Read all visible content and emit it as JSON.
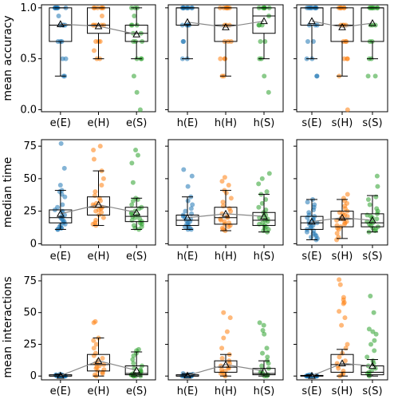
{
  "chart_data": [
    {
      "type": "box+strip",
      "row": 0,
      "col": 0,
      "ylabel": "mean accuracy",
      "ylim": [
        -0.02,
        1.03
      ],
      "yticks": [
        0.0,
        0.5,
        1.0
      ],
      "categories": [
        "e(E)",
        "e(H)",
        "e(S)"
      ],
      "colors": [
        "#1f77b4",
        "#ff7f0e",
        "#2ca02c"
      ],
      "boxes": [
        {
          "min": 0.33,
          "q1": 0.67,
          "median": 0.83,
          "q3": 1.0,
          "max": 1.0,
          "mean": 0.84
        },
        {
          "min": 0.5,
          "q1": 0.75,
          "median": 0.83,
          "q3": 1.0,
          "max": 1.0,
          "mean": 0.82
        },
        {
          "min": 0.5,
          "q1": 0.67,
          "median": 0.75,
          "q3": 0.83,
          "max": 1.0,
          "mean": 0.74
        }
      ],
      "points": [
        [
          1,
          1,
          1,
          1,
          1,
          1,
          1,
          1,
          0.92,
          0.83,
          0.83,
          0.83,
          0.83,
          0.67,
          0.67,
          0.67,
          0.5,
          0.5,
          0.33,
          0.33
        ],
        [
          1,
          1,
          1,
          1,
          1,
          1,
          0.92,
          0.83,
          0.83,
          0.83,
          0.83,
          0.83,
          0.67,
          0.67,
          0.67,
          0.58,
          0.5,
          0.5
        ],
        [
          1,
          1,
          1,
          0.92,
          0.83,
          0.83,
          0.83,
          0.75,
          0.75,
          0.67,
          0.67,
          0.67,
          0.5,
          0.5,
          0.5,
          0.33,
          0.17,
          0.0
        ]
      ]
    },
    {
      "type": "box+strip",
      "row": 0,
      "col": 1,
      "ylabel": "",
      "ylim": [
        -0.02,
        1.03
      ],
      "yticks": [
        0.0,
        0.5,
        1.0
      ],
      "categories": [
        "h(E)",
        "h(H)",
        "h(S)"
      ],
      "colors": [
        "#1f77b4",
        "#ff7f0e",
        "#2ca02c"
      ],
      "boxes": [
        {
          "min": 0.5,
          "q1": 0.83,
          "median": 1.0,
          "q3": 1.0,
          "max": 1.0,
          "mean": 0.86
        },
        {
          "min": 0.33,
          "q1": 0.67,
          "median": 0.83,
          "q3": 1.0,
          "max": 1.0,
          "mean": 0.81
        },
        {
          "min": 0.5,
          "q1": 0.75,
          "median": 0.92,
          "q3": 1.0,
          "max": 1.0,
          "mean": 0.87
        }
      ],
      "points": [
        [
          1,
          1,
          1,
          1,
          1,
          1,
          1,
          1,
          1,
          0.83,
          0.83,
          0.83,
          0.83,
          0.67,
          0.67,
          0.5,
          0.5
        ],
        [
          1,
          1,
          1,
          1,
          1,
          1,
          1,
          0.83,
          0.83,
          0.83,
          0.67,
          0.67,
          0.67,
          0.5,
          0.5,
          0.5,
          0.33,
          0.33
        ],
        [
          1,
          1,
          1,
          1,
          1,
          1,
          1,
          0.92,
          0.83,
          0.83,
          0.83,
          0.67,
          0.67,
          0.5,
          0.5,
          0.33,
          0.17
        ]
      ]
    },
    {
      "type": "box+strip",
      "row": 0,
      "col": 2,
      "ylabel": "",
      "ylim": [
        -0.02,
        1.03
      ],
      "yticks": [
        0.0,
        0.5,
        1.0
      ],
      "categories": [
        "s(E)",
        "s(H)",
        "s(S)"
      ],
      "colors": [
        "#1f77b4",
        "#ff7f0e",
        "#2ca02c"
      ],
      "boxes": [
        {
          "min": 0.5,
          "q1": 0.83,
          "median": 1.0,
          "q3": 1.0,
          "max": 1.0,
          "mean": 0.87
        },
        {
          "min": 0.33,
          "q1": 0.67,
          "median": 0.83,
          "q3": 1.0,
          "max": 1.0,
          "mean": 0.81
        },
        {
          "min": 0.5,
          "q1": 0.67,
          "median": 1.0,
          "q3": 1.0,
          "max": 1.0,
          "mean": 0.85
        }
      ],
      "points": [
        [
          1,
          1,
          1,
          1,
          1,
          1,
          1,
          1,
          1,
          0.83,
          0.83,
          0.83,
          0.67,
          0.67,
          0.5,
          0.5,
          0.33,
          0.33
        ],
        [
          1,
          1,
          1,
          1,
          1,
          1,
          0.83,
          0.83,
          0.83,
          0.83,
          0.67,
          0.67,
          0.67,
          0.5,
          0.5,
          0.5,
          0.33,
          0.0
        ],
        [
          1,
          1,
          1,
          1,
          1,
          1,
          1,
          1,
          0.83,
          0.83,
          0.83,
          0.67,
          0.67,
          0.5,
          0.5,
          0.33,
          0.33
        ]
      ]
    },
    {
      "type": "box+strip",
      "row": 1,
      "col": 0,
      "ylabel": "median time",
      "ylim": [
        -1,
        80
      ],
      "yticks": [
        0,
        25,
        50,
        75
      ],
      "categories": [
        "e(E)",
        "e(H)",
        "e(S)"
      ],
      "colors": [
        "#1f77b4",
        "#ff7f0e",
        "#2ca02c"
      ],
      "boxes": [
        {
          "min": 11,
          "q1": 16,
          "median": 20,
          "q3": 26,
          "max": 41,
          "mean": 23
        },
        {
          "min": 14,
          "q1": 22,
          "median": 28,
          "q3": 36,
          "max": 56,
          "mean": 30
        },
        {
          "min": 11,
          "q1": 17,
          "median": 21,
          "q3": 28,
          "max": 35,
          "mean": 24
        }
      ],
      "points": [
        [
          77,
          58,
          45,
          41,
          40,
          38,
          36,
          30,
          28,
          26,
          25,
          24,
          22,
          21,
          20,
          19,
          18,
          17,
          16,
          15,
          14,
          13,
          12,
          12,
          11,
          11
        ],
        [
          75,
          72,
          65,
          56,
          50,
          45,
          40,
          37,
          35,
          33,
          31,
          30,
          29,
          28,
          27,
          26,
          25,
          24,
          22,
          20,
          18,
          16,
          15,
          14
        ],
        [
          72,
          68,
          62,
          47,
          35,
          34,
          33,
          30,
          28,
          27,
          25,
          24,
          23,
          22,
          21,
          20,
          19,
          18,
          17,
          16,
          15,
          14,
          13,
          12,
          11
        ]
      ]
    },
    {
      "type": "box+strip",
      "row": 1,
      "col": 1,
      "ylabel": "",
      "ylim": [
        -1,
        80
      ],
      "yticks": [
        0,
        25,
        50,
        75
      ],
      "categories": [
        "h(E)",
        "h(H)",
        "h(S)"
      ],
      "colors": [
        "#1f77b4",
        "#ff7f0e",
        "#2ca02c"
      ],
      "boxes": [
        {
          "min": 11,
          "q1": 14,
          "median": 18,
          "q3": 22,
          "max": 36,
          "mean": 20
        },
        {
          "min": 10,
          "q1": 15,
          "median": 20,
          "q3": 28,
          "max": 41,
          "mean": 23
        },
        {
          "min": 9,
          "q1": 14,
          "median": 18,
          "q3": 24,
          "max": 38,
          "mean": 21
        }
      ],
      "points": [
        [
          57,
          52,
          44,
          36,
          33,
          30,
          27,
          25,
          23,
          22,
          21,
          20,
          19,
          18,
          17,
          16,
          15,
          14,
          13,
          12,
          11,
          11
        ],
        [
          51,
          48,
          45,
          41,
          39,
          35,
          32,
          29,
          27,
          25,
          23,
          21,
          20,
          19,
          18,
          17,
          16,
          15,
          14,
          13,
          12,
          11,
          10
        ],
        [
          54,
          50,
          46,
          40,
          38,
          34,
          31,
          28,
          26,
          24,
          22,
          21,
          20,
          19,
          18,
          17,
          16,
          15,
          14,
          13,
          12,
          11,
          10,
          9
        ]
      ]
    },
    {
      "type": "box+strip",
      "row": 1,
      "col": 2,
      "ylabel": "",
      "ylim": [
        -1,
        80
      ],
      "yticks": [
        0,
        25,
        50,
        75
      ],
      "categories": [
        "s(E)",
        "s(H)",
        "s(S)"
      ],
      "colors": [
        "#1f77b4",
        "#ff7f0e",
        "#2ca02c"
      ],
      "boxes": [
        {
          "min": 3,
          "q1": 11,
          "median": 16,
          "q3": 21,
          "max": 34,
          "mean": 17
        },
        {
          "min": 4,
          "q1": 13,
          "median": 19,
          "q3": 25,
          "max": 34,
          "mean": 20
        },
        {
          "min": 9,
          "q1": 13,
          "median": 16,
          "q3": 23,
          "max": 37,
          "mean": 18
        }
      ],
      "points": [
        [
          34,
          32,
          30,
          28,
          26,
          24,
          22,
          21,
          20,
          19,
          18,
          17,
          16,
          15,
          14,
          13,
          12,
          11,
          10,
          9,
          8,
          7,
          6,
          5,
          4,
          3
        ],
        [
          38,
          35,
          33,
          31,
          29,
          27,
          25,
          24,
          23,
          22,
          21,
          20,
          19,
          18,
          17,
          16,
          15,
          14,
          13,
          12,
          11,
          8,
          5,
          3
        ],
        [
          52,
          44,
          36,
          34,
          30,
          27,
          25,
          23,
          22,
          21,
          20,
          19,
          18,
          17,
          16,
          15,
          14,
          13,
          12,
          11,
          10,
          9
        ]
      ]
    },
    {
      "type": "box+strip",
      "row": 2,
      "col": 0,
      "ylabel": "mean interactions",
      "ylim": [
        -3,
        80
      ],
      "yticks": [
        0,
        25,
        50,
        75
      ],
      "categories": [
        "e(E)",
        "e(H)",
        "e(S)"
      ],
      "colors": [
        "#1f77b4",
        "#ff7f0e",
        "#2ca02c"
      ],
      "boxes": [
        {
          "min": 0,
          "q1": 0,
          "median": 0,
          "q3": 1,
          "max": 1.5,
          "mean": 0.3
        },
        {
          "min": 0,
          "q1": 4,
          "median": 9,
          "q3": 17,
          "max": 30,
          "mean": 12
        },
        {
          "min": 0,
          "q1": 1,
          "median": 2,
          "q3": 8,
          "max": 19,
          "mean": 4.5
        }
      ],
      "points": [
        [
          1.5,
          1,
          1,
          0.5,
          0.5,
          0,
          0,
          0,
          0,
          0,
          0,
          0,
          0,
          0,
          0,
          0,
          0,
          0,
          0
        ],
        [
          43,
          42,
          30,
          28,
          25,
          22,
          18,
          16,
          14,
          12,
          10,
          9,
          8,
          7,
          6,
          5,
          4,
          3,
          2,
          1,
          0
        ],
        [
          21,
          20,
          18,
          16,
          13,
          10,
          8,
          6,
          5,
          4,
          3,
          2,
          2,
          1,
          1,
          0,
          0,
          0,
          0
        ]
      ]
    },
    {
      "type": "box+strip",
      "row": 2,
      "col": 1,
      "ylabel": "",
      "ylim": [
        -3,
        80
      ],
      "yticks": [
        0,
        25,
        50,
        75
      ],
      "categories": [
        "h(E)",
        "h(H)",
        "h(S)"
      ],
      "colors": [
        "#1f77b4",
        "#ff7f0e",
        "#2ca02c"
      ],
      "boxes": [
        {
          "min": 0,
          "q1": 0,
          "median": 0,
          "q3": 1,
          "max": 2,
          "mean": 0.4
        },
        {
          "min": 0,
          "q1": 3,
          "median": 7,
          "q3": 12,
          "max": 17,
          "mean": 9
        },
        {
          "min": 0,
          "q1": 1,
          "median": 2,
          "q3": 6,
          "max": 12,
          "mean": 4
        }
      ],
      "points": [
        [
          2,
          1.5,
          1,
          1,
          0.5,
          0.5,
          0,
          0,
          0,
          0,
          0,
          0,
          0,
          0,
          0,
          0,
          0
        ],
        [
          50,
          46,
          35,
          30,
          22,
          17,
          14,
          12,
          10,
          8,
          7,
          6,
          5,
          4,
          3,
          2,
          1,
          0
        ],
        [
          42,
          40,
          36,
          33,
          22,
          18,
          15,
          12,
          10,
          8,
          6,
          4,
          3,
          2,
          1,
          0,
          0
        ]
      ]
    },
    {
      "type": "box+strip",
      "row": 2,
      "col": 2,
      "ylabel": "",
      "ylim": [
        -3,
        80
      ],
      "yticks": [
        0,
        25,
        50,
        75
      ],
      "categories": [
        "s(E)",
        "s(H)",
        "s(S)"
      ],
      "colors": [
        "#1f77b4",
        "#ff7f0e",
        "#2ca02c"
      ],
      "boxes": [
        {
          "min": 0,
          "q1": 0,
          "median": 0,
          "q3": 0.5,
          "max": 1,
          "mean": 0.2
        },
        {
          "min": 0,
          "q1": 3,
          "median": 9,
          "q3": 17,
          "max": 21,
          "mean": 10
        },
        {
          "min": 0,
          "q1": 1,
          "median": 3,
          "q3": 8,
          "max": 13,
          "mean": 8
        }
      ],
      "points": [
        [
          1,
          1,
          0.5,
          0.5,
          0,
          0,
          0,
          0,
          0,
          0,
          0,
          0,
          0,
          0,
          0,
          0,
          0,
          0
        ],
        [
          76,
          72,
          62,
          60,
          58,
          57,
          51,
          46,
          40,
          25,
          22,
          18,
          15,
          12,
          10,
          8,
          6,
          4,
          2,
          1,
          0
        ],
        [
          63,
          50,
          37,
          35,
          33,
          28,
          25,
          20,
          15,
          12,
          10,
          8,
          6,
          4,
          3,
          2,
          1,
          0
        ]
      ]
    }
  ]
}
